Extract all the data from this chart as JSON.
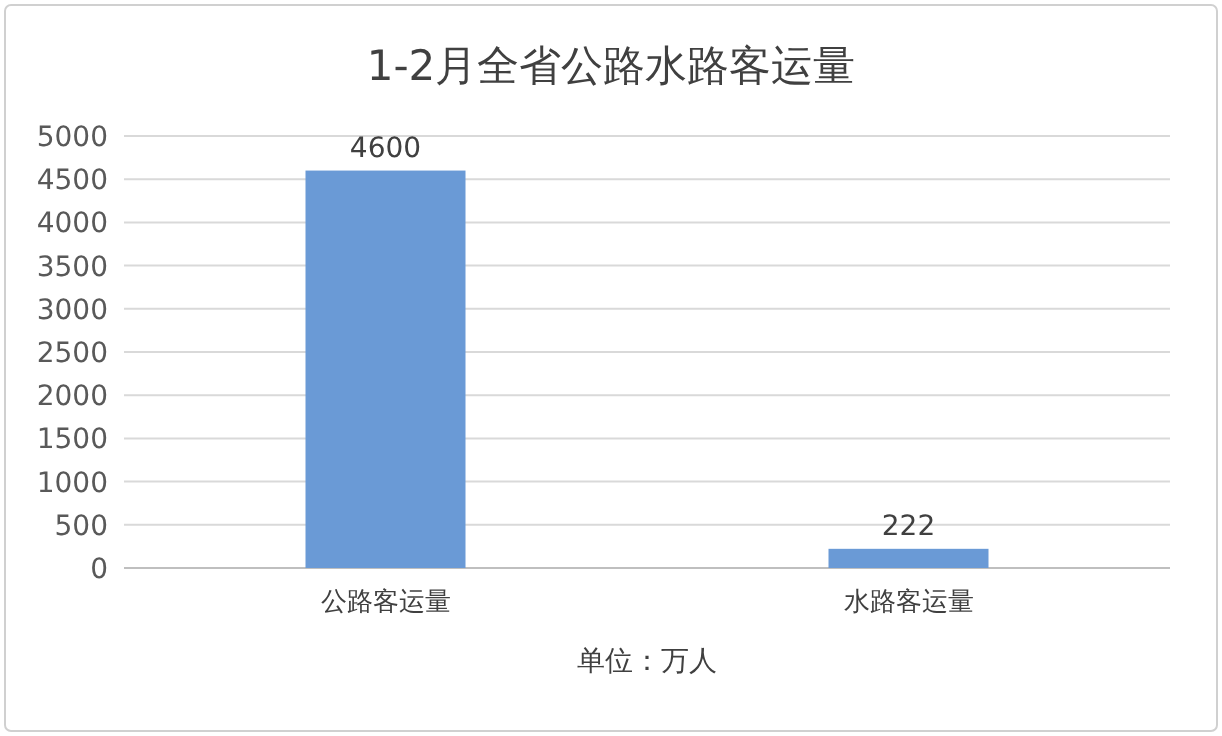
{
  "chart_data": {
    "type": "bar",
    "title": "1-2月全省公路水路客运量",
    "xlabel": "单位：万人",
    "categories": [
      "公路客运量",
      "水路客运量"
    ],
    "values": [
      4600,
      222
    ],
    "color": "#6a9ad6",
    "ylim": [
      0,
      5000
    ],
    "yticks": [
      0,
      500,
      1000,
      1500,
      2000,
      2500,
      3000,
      3500,
      4000,
      4500,
      5000
    ],
    "grid": "y",
    "data_labels": true
  }
}
